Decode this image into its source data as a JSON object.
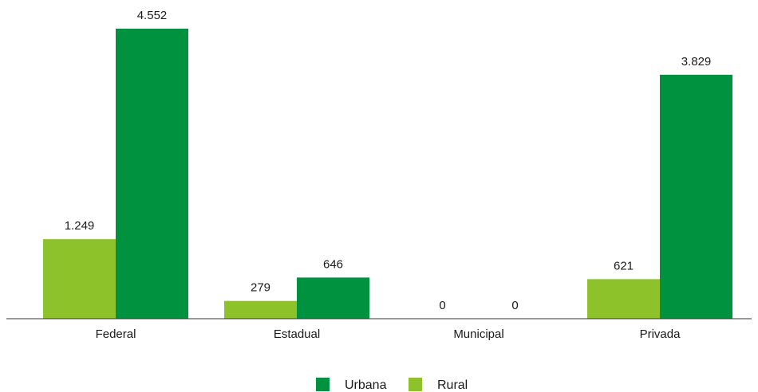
{
  "chart_data": {
    "type": "bar",
    "categories": [
      "Federal",
      "Estadual",
      "Municipal",
      "Privada"
    ],
    "series": [
      {
        "name": "Rural",
        "color": "#8dc22a",
        "values": [
          1249,
          279,
          0,
          621
        ],
        "labels": [
          "1.249",
          "279",
          "0",
          "621"
        ]
      },
      {
        "name": "Urbana",
        "color": "#00923f",
        "values": [
          4552,
          646,
          0,
          3829
        ],
        "labels": [
          "4.552",
          "646",
          "0",
          "3.829"
        ]
      }
    ],
    "legend_order": [
      "Urbana",
      "Rural"
    ],
    "legend_position": "bottom-center",
    "ylim": [
      0,
      4552
    ],
    "grid": false,
    "title": "",
    "xlabel": "",
    "ylabel": ""
  }
}
